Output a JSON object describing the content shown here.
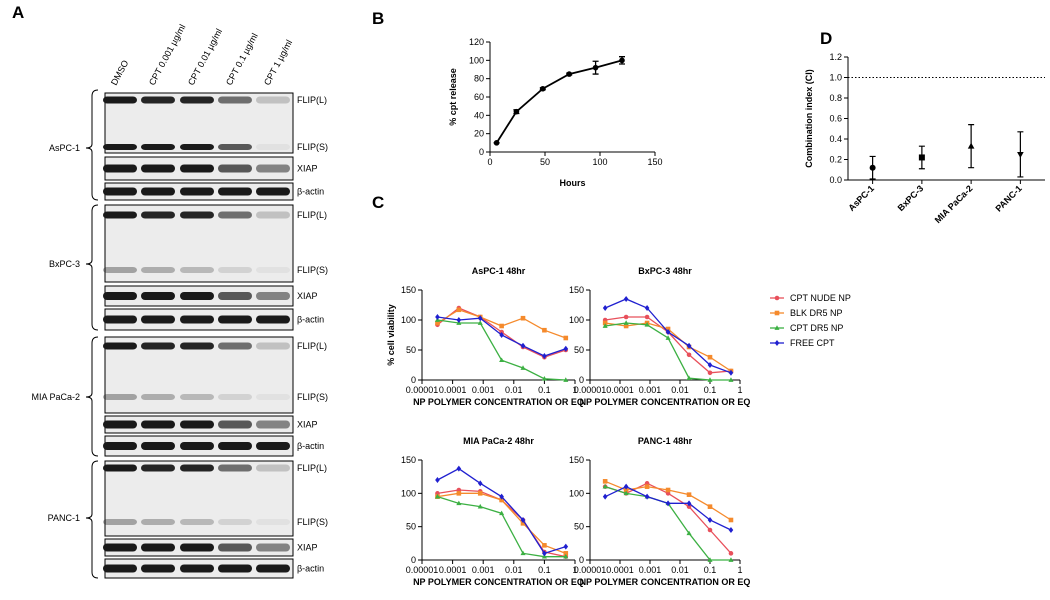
{
  "panel_labels": [
    "A",
    "B",
    "C",
    "D"
  ],
  "blot": {
    "lanes": [
      "DMSO",
      "CPT 0.001 µg/ml",
      "CPT 0.01 µg/ml",
      "CPT 0.1 µg/ml",
      "CPT 1 µg/ml"
    ],
    "groups": [
      {
        "cell": "AsPC-1",
        "rows": [
          "FLIP(L)",
          "FLIP(S)",
          "XIAP",
          "β-actin"
        ]
      },
      {
        "cell": "BxPC-3",
        "rows": [
          "FLIP(L)",
          "FLIP(S)",
          "XIAP",
          "β-actin"
        ]
      },
      {
        "cell": "MIA PaCa-2",
        "rows": [
          "FLIP(L)",
          "FLIP(S)",
          "XIAP",
          "β-actin"
        ]
      },
      {
        "cell": "PANC-1",
        "rows": [
          "FLIP(L)",
          "FLIP(S)",
          "XIAP",
          "β-actin"
        ]
      }
    ]
  },
  "chart_data": [
    {
      "type": "line",
      "xlabel": "Hours",
      "ylabel": "% cpt release",
      "x": [
        6,
        24,
        48,
        72,
        96,
        120
      ],
      "values": [
        10,
        44,
        69,
        85,
        92,
        100
      ],
      "errors": [
        0,
        2,
        1,
        1,
        7,
        4
      ],
      "color": "#000000",
      "marker": "circle",
      "xlim": [
        0,
        150
      ],
      "xticks": [
        0,
        50,
        100,
        150
      ],
      "ylim": [
        0,
        120
      ],
      "yticks": [
        0,
        20,
        40,
        60,
        80,
        100,
        120
      ]
    },
    {
      "type": "line",
      "title": "AsPC-1 48hr",
      "xlabel": "NP POLYMER CONCENTRATION OR EQ",
      "ylabel": "% cell viability",
      "xscale": "log",
      "legend": "outside-right",
      "x": [
        3.2e-05,
        0.00016,
        0.0008,
        0.004,
        0.02,
        0.1,
        0.5
      ],
      "series": [
        {
          "name": "CPT NUDE NP",
          "color": "#e8505b",
          "marker": "circle",
          "values": [
            92,
            120,
            105,
            80,
            55,
            38,
            50
          ]
        },
        {
          "name": "BLK DR5 NP",
          "color": "#f58a2c",
          "marker": "square",
          "values": [
            95,
            117,
            105,
            90,
            103,
            83,
            70
          ]
        },
        {
          "name": "CPT DR5 NP",
          "color": "#3cb043",
          "marker": "triangle",
          "values": [
            100,
            95,
            95,
            33,
            20,
            2,
            0
          ]
        },
        {
          "name": "FREE CPT",
          "color": "#2020d0",
          "marker": "diamond",
          "values": [
            105,
            100,
            103,
            75,
            57,
            40,
            52
          ]
        }
      ],
      "xlim": [
        1e-05,
        1
      ],
      "xticks": [
        {
          "value": 1e-05,
          "label": "0.00001"
        },
        0.0001,
        0.001,
        0.01,
        0.1,
        1
      ],
      "ylim": [
        0,
        150
      ],
      "yticks": [
        0,
        50,
        100,
        150
      ]
    },
    {
      "type": "line",
      "title": "BxPC-3 48hr",
      "xlabel": "NP POLYMER CONCENTRATION OR EQ",
      "xscale": "log",
      "x": [
        3.2e-05,
        0.00016,
        0.0008,
        0.004,
        0.02,
        0.1,
        0.5
      ],
      "series": [
        {
          "name": "CPT NUDE NP",
          "color": "#e8505b",
          "marker": "circle",
          "values": [
            100,
            105,
            105,
            80,
            42,
            12,
            15
          ]
        },
        {
          "name": "BLK DR5 NP",
          "color": "#f58a2c",
          "marker": "square",
          "values": [
            95,
            90,
            95,
            85,
            55,
            38,
            15
          ]
        },
        {
          "name": "CPT DR5 NP",
          "color": "#3cb043",
          "marker": "triangle",
          "values": [
            90,
            95,
            92,
            70,
            3,
            0,
            0
          ]
        },
        {
          "name": "FREE CPT",
          "color": "#2020d0",
          "marker": "diamond",
          "values": [
            120,
            135,
            120,
            80,
            57,
            25,
            12
          ]
        }
      ],
      "xlim": [
        1e-05,
        1
      ],
      "xticks": [
        {
          "value": 1e-05,
          "label": "0.00001"
        },
        0.0001,
        0.001,
        0.01,
        0.1,
        1
      ],
      "ylim": [
        0,
        150
      ],
      "yticks": [
        0,
        50,
        100,
        150
      ]
    },
    {
      "type": "line",
      "title": "MIA PaCa-2 48hr",
      "xlabel": "NP POLYMER CONCENTRATION OR EQ",
      "xscale": "log",
      "x": [
        3.2e-05,
        0.00016,
        0.0008,
        0.004,
        0.02,
        0.1,
        0.5
      ],
      "series": [
        {
          "name": "CPT NUDE NP",
          "color": "#e8505b",
          "marker": "circle",
          "values": [
            100,
            105,
            103,
            90,
            60,
            12,
            5
          ]
        },
        {
          "name": "BLK DR5 NP",
          "color": "#f58a2c",
          "marker": "square",
          "values": [
            95,
            100,
            100,
            90,
            55,
            22,
            10
          ]
        },
        {
          "name": "CPT DR5 NP",
          "color": "#3cb043",
          "marker": "triangle",
          "values": [
            95,
            85,
            80,
            70,
            10,
            5,
            5
          ]
        },
        {
          "name": "FREE CPT",
          "color": "#2020d0",
          "marker": "diamond",
          "values": [
            120,
            137,
            115,
            95,
            60,
            10,
            20
          ]
        }
      ],
      "xlim": [
        1e-05,
        1
      ],
      "xticks": [
        {
          "value": 1e-05,
          "label": "0.00001"
        },
        0.0001,
        0.001,
        0.01,
        0.1,
        1
      ],
      "ylim": [
        0,
        150
      ],
      "yticks": [
        0,
        50,
        100,
        150
      ]
    },
    {
      "type": "line",
      "title": "PANC-1 48hr",
      "xlabel": "NP POLYMER CONCENTRATION OR EQ",
      "xscale": "log",
      "x": [
        3.2e-05,
        0.00016,
        0.0008,
        0.004,
        0.02,
        0.1,
        0.5
      ],
      "series": [
        {
          "name": "CPT NUDE NP",
          "color": "#e8505b",
          "marker": "circle",
          "values": [
            110,
            100,
            115,
            100,
            80,
            45,
            10
          ]
        },
        {
          "name": "BLK DR5 NP",
          "color": "#f58a2c",
          "marker": "square",
          "values": [
            118,
            105,
            110,
            105,
            98,
            80,
            60
          ]
        },
        {
          "name": "CPT DR5 NP",
          "color": "#3cb043",
          "marker": "triangle",
          "values": [
            110,
            100,
            95,
            85,
            40,
            0,
            0
          ]
        },
        {
          "name": "FREE CPT",
          "color": "#2020d0",
          "marker": "diamond",
          "values": [
            95,
            110,
            95,
            85,
            85,
            60,
            45
          ]
        }
      ],
      "xlim": [
        1e-05,
        1
      ],
      "xticks": [
        {
          "value": 1e-05,
          "label": "0.00001"
        },
        0.0001,
        0.001,
        0.01,
        0.1,
        1
      ],
      "ylim": [
        0,
        150
      ],
      "yticks": [
        0,
        50,
        100,
        150
      ]
    },
    {
      "type": "scatter",
      "ylabel": "Combination index (CI)",
      "categories": [
        "AsPC-1",
        "BxPC-3",
        "MIA PaCa-2",
        "PANC-1"
      ],
      "values": [
        0.12,
        0.22,
        0.33,
        0.25
      ],
      "errors": [
        0.11,
        0.11,
        0.21,
        0.22
      ],
      "markers": [
        "circle",
        "square",
        "triangle",
        "triangle-down"
      ],
      "color": "#000000",
      "reference_line": 1.0,
      "ylim": [
        0,
        1.2
      ],
      "yticks": [
        {
          "value": 0,
          "label": "0.0"
        },
        0.2,
        0.4,
        0.6,
        0.8,
        {
          "value": 1,
          "label": "1.0"
        },
        1.2
      ]
    }
  ]
}
